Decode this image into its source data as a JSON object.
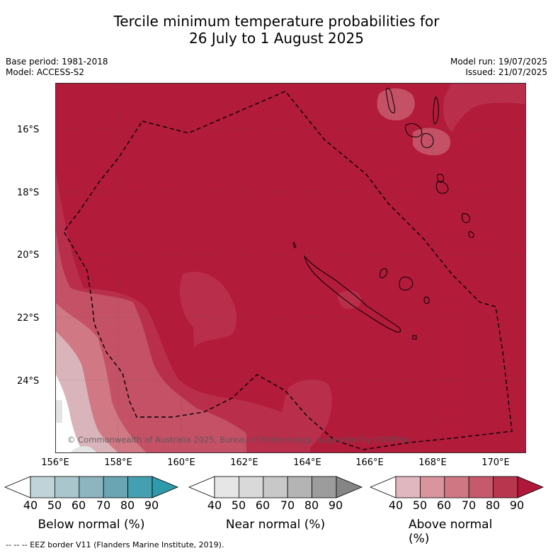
{
  "title_line1": "Tercile minimum temperature probabilities for",
  "title_line2": "26 July to 1 August 2025",
  "base_period": "Base period: 1981-2018",
  "model": "Model: ACCESS-S2",
  "model_run": "Model run: 19/07/2025",
  "issued": "Issued: 21/07/2025",
  "copyright": "© Commonwealth of Australia 2025, Bureau of Meteorology, supported by COSPPac",
  "footer": "--  --  -- EEZ border V11 (Flanders Marine Institute, 2019).",
  "lat_labels": [
    "16°S",
    "18°S",
    "20°S",
    "22°S",
    "24°S"
  ],
  "lon_labels": [
    "156°E",
    "158°E",
    "160°E",
    "162°E",
    "164°E",
    "166°E",
    "168°E",
    "170°E"
  ],
  "colorbars": [
    {
      "title": "Below normal (%)",
      "ticks": [
        "40",
        "50",
        "60",
        "70",
        "80",
        "90"
      ],
      "colors": [
        "#ffffff",
        "#c0d3d8",
        "#a9c6cc",
        "#8cb5bf",
        "#6aa5b3",
        "#44a0b0",
        "#2e9aaa"
      ]
    },
    {
      "title": "Near normal (%)",
      "ticks": [
        "40",
        "50",
        "60",
        "70",
        "80",
        "90"
      ],
      "colors": [
        "#ffffff",
        "#e6e6e6",
        "#d9d9d9",
        "#c8c8c8",
        "#b4b4b4",
        "#9c9c9c",
        "#858585"
      ]
    },
    {
      "title": "Above normal (%)",
      "ticks": [
        "40",
        "50",
        "60",
        "70",
        "80",
        "90"
      ],
      "colors": [
        "#ffffff",
        "#e1b7bf",
        "#d9949d",
        "#cf7884",
        "#c65a6c",
        "#b9364f",
        "#b0173a"
      ]
    }
  ],
  "map_colors": {
    "above_90": "#b31b3a",
    "above_80": "#b92f4b",
    "above_70": "#c45166",
    "above_60": "#d07884",
    "above_50": "#dab4bb",
    "white": "#ffffff",
    "grey": "#e4e4e4"
  }
}
